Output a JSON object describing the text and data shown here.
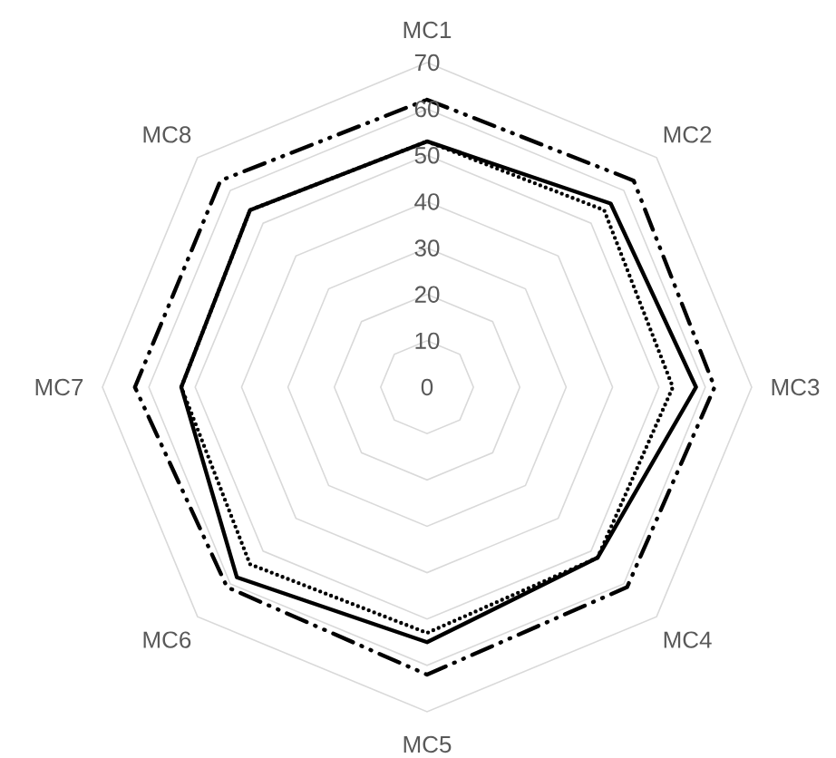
{
  "chart_data": {
    "type": "radar",
    "categories": [
      "MC1",
      "MC2",
      "MC3",
      "MC4",
      "MC5",
      "MC6",
      "MC7",
      "MC8"
    ],
    "ylim": [
      0,
      70
    ],
    "yticks": [
      0,
      10,
      20,
      30,
      40,
      50,
      60,
      70
    ],
    "grid": true,
    "series": [
      {
        "color": "#000000",
        "line_style": "solid",
        "values": [
          53,
          56,
          58,
          52,
          55,
          58,
          53,
          54
        ]
      },
      {
        "color": "#000000",
        "line_style": "dotted",
        "values": [
          53,
          54,
          53,
          52,
          53,
          54,
          53,
          54
        ]
      },
      {
        "color": "#000000",
        "line_style": "dashdot",
        "values": [
          62,
          63,
          62,
          61,
          62,
          61,
          63,
          63
        ]
      }
    ]
  }
}
